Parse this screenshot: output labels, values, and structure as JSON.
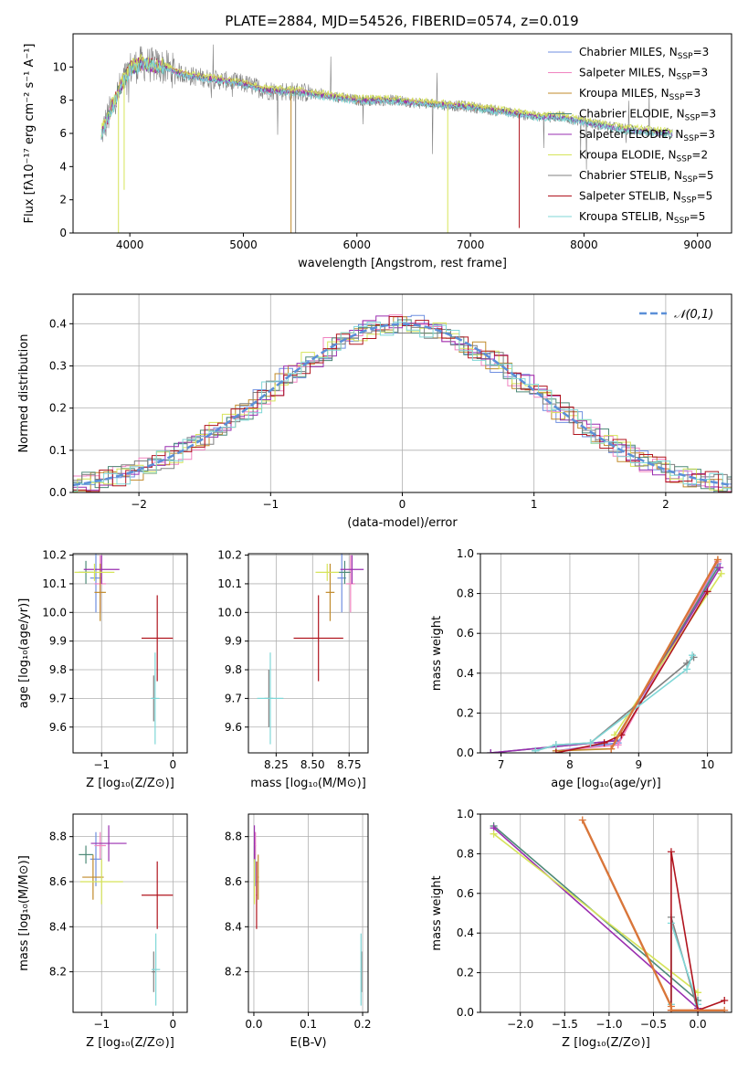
{
  "figure": {
    "title": "PLATE=2884, MJD=54526, FIBERID=0574, z=0.019"
  },
  "colors": {
    "Chabrier MILES": "#6f8fe0",
    "Salpeter MILES": "#f083c0",
    "Kroupa MILES": "#c08a2a",
    "Chabrier ELODIE": "#4e8a78",
    "Salpeter ELODIE": "#9a2fb0",
    "Kroupa ELODIE": "#d6e45a",
    "Chabrier STELIB": "#808080",
    "Salpeter STELIB": "#b0141e",
    "Kroupa STELIB": "#7fd7d7",
    "normal": "#5b8fd8",
    "orange_line": "#d9763a"
  },
  "chart_data": [
    {
      "id": "spectrum",
      "type": "line",
      "title": "PLATE=2884, MJD=54526, FIBERID=0574, z=0.019",
      "xlabel": "wavelength [Angstrom, rest frame]",
      "ylabel": "Flux [fλ10⁻¹⁷ erg cm⁻² s⁻¹ A⁻¹]",
      "xlim": [
        3500,
        9300
      ],
      "ylim": [
        0,
        12
      ],
      "xticks": [
        4000,
        5000,
        6000,
        7000,
        8000,
        9000
      ],
      "yticks": [
        0,
        2,
        4,
        6,
        8,
        10
      ],
      "grid": false,
      "legend_position": "top-right",
      "legend": [
        "Chabrier MILES, N_SSP=3",
        "Salpeter MILES, N_SSP=3",
        "Kroupa MILES, N_SSP=3",
        "Chabrier ELODIE, N_SSP=3",
        "Salpeter ELODIE, N_SSP=3",
        "Kroupa ELODIE, N_SSP=2",
        "Chabrier STELIB, N_SSP=5",
        "Salpeter STELIB, N_SSP=5",
        "Kroupa STELIB, N_SSP=5"
      ],
      "continuum": {
        "x": [
          3750,
          3900,
          4000,
          4100,
          4300,
          4500,
          4800,
          5000,
          5200,
          5500,
          5800,
          6000,
          6300,
          6600,
          7000,
          7300,
          7600,
          7800,
          8000,
          8300,
          8600,
          8800
        ],
        "y": [
          6.0,
          8.5,
          9.9,
          10.2,
          10.0,
          9.5,
          9.2,
          9.0,
          8.6,
          8.5,
          8.2,
          8.0,
          8.0,
          7.8,
          7.6,
          7.3,
          7.0,
          7.0,
          6.7,
          6.3,
          6.1,
          6.0
        ]
      },
      "dropouts": [
        {
          "x": 3900,
          "y": 0.0,
          "series": "Kroupa ELODIE"
        },
        {
          "x": 3950,
          "y": 2.6,
          "series": "Kroupa ELODIE"
        },
        {
          "x": 5420,
          "y": 0.0,
          "series": "Kroupa MILES"
        },
        {
          "x": 5460,
          "y": 0.0,
          "series": "Chabrier STELIB"
        },
        {
          "x": 6800,
          "y": 0.0,
          "series": "Kroupa ELODIE"
        },
        {
          "x": 7430,
          "y": 0.3,
          "series": "Salpeter STELIB"
        }
      ]
    },
    {
      "id": "residuals",
      "type": "histogram",
      "xlabel": "(data-model)/error",
      "ylabel": "Normed distribution",
      "xlim": [
        -2.5,
        2.5
      ],
      "ylim": [
        0,
        0.47
      ],
      "xticks": [
        -2,
        -1,
        0,
        1,
        2
      ],
      "yticks": [
        0.0,
        0.1,
        0.2,
        0.3,
        0.4
      ],
      "grid": true,
      "legend_position": "top-right",
      "legend": [
        "𝒩(0,1)"
      ],
      "normal": {
        "mean": 0,
        "sigma": 1
      }
    },
    {
      "id": "age_vs_Z",
      "type": "scatter",
      "xlabel": "Z [log₁₀(Z/Z⊙)]",
      "ylabel": "age  [log₁₀(age/yr)]",
      "xlim": [
        -1.4,
        0.2
      ],
      "ylim": [
        9.51,
        10.205
      ],
      "xticks": [
        -1,
        0
      ],
      "yticks": [
        9.6,
        9.7,
        9.8,
        9.9,
        10.0,
        10.1,
        10.2
      ],
      "grid": true,
      "points": [
        {
          "series": "Chabrier MILES",
          "x": -1.08,
          "y": 10.12,
          "xerr": 0.08,
          "yerr": 0.12
        },
        {
          "series": "Salpeter MILES",
          "x": -1.02,
          "y": 10.1,
          "xerr": 0.08,
          "yerr": 0.1
        },
        {
          "series": "Kroupa MILES",
          "x": -1.02,
          "y": 10.07,
          "xerr": 0.08,
          "yerr": 0.1
        },
        {
          "series": "Chabrier ELODIE",
          "x": -1.22,
          "y": 10.14,
          "xerr": 0.1,
          "yerr": 0.04
        },
        {
          "series": "Salpeter ELODIE",
          "x": -1.0,
          "y": 10.15,
          "xerr": 0.25,
          "yerr": 0.05
        },
        {
          "series": "Kroupa ELODIE",
          "x": -1.1,
          "y": 10.14,
          "xerr": 0.28,
          "yerr": 0.03
        },
        {
          "series": "Chabrier STELIB",
          "x": -0.27,
          "y": 9.7,
          "xerr": 0.03,
          "yerr": 0.08
        },
        {
          "series": "Salpeter STELIB",
          "x": -0.22,
          "y": 9.91,
          "xerr": 0.22,
          "yerr": 0.15
        },
        {
          "series": "Kroupa STELIB",
          "x": -0.25,
          "y": 9.7,
          "xerr": 0.06,
          "yerr": 0.16
        }
      ]
    },
    {
      "id": "age_vs_mass",
      "type": "scatter",
      "xlabel": "mass [log₁₀(M/M⊙)]",
      "ylabel": "",
      "xlim": [
        8.06,
        8.88
      ],
      "ylim": [
        9.51,
        10.205
      ],
      "xticks": [
        8.25,
        8.5,
        8.75
      ],
      "yticks": [
        9.6,
        9.7,
        9.8,
        9.9,
        10.0,
        10.1,
        10.2
      ],
      "grid": true,
      "points": [
        {
          "series": "Chabrier MILES",
          "x": 8.7,
          "y": 10.12,
          "xerr": 0.03,
          "yerr": 0.12
        },
        {
          "series": "Salpeter MILES",
          "x": 8.76,
          "y": 10.1,
          "xerr": 0.03,
          "yerr": 0.1
        },
        {
          "series": "Kroupa MILES",
          "x": 8.62,
          "y": 10.07,
          "xerr": 0.03,
          "yerr": 0.1
        },
        {
          "series": "Chabrier ELODIE",
          "x": 8.72,
          "y": 10.14,
          "xerr": 0.04,
          "yerr": 0.04
        },
        {
          "series": "Salpeter ELODIE",
          "x": 8.77,
          "y": 10.15,
          "xerr": 0.08,
          "yerr": 0.05
        },
        {
          "series": "Kroupa ELODIE",
          "x": 8.6,
          "y": 10.14,
          "xerr": 0.08,
          "yerr": 0.03
        },
        {
          "series": "Chabrier STELIB",
          "x": 8.2,
          "y": 9.7,
          "xerr": 0.03,
          "yerr": 0.1
        },
        {
          "series": "Salpeter STELIB",
          "x": 8.54,
          "y": 9.91,
          "xerr": 0.17,
          "yerr": 0.15
        },
        {
          "series": "Kroupa STELIB",
          "x": 8.21,
          "y": 9.7,
          "xerr": 0.09,
          "yerr": 0.16
        }
      ]
    },
    {
      "id": "massweight_vs_age",
      "type": "line",
      "xlabel": "age  [log₁₀(age/yr)]",
      "ylabel": "mass weight",
      "xlim": [
        6.7,
        10.35
      ],
      "ylim": [
        0,
        1
      ],
      "xticks": [
        7,
        8,
        9,
        10
      ],
      "yticks": [
        0.0,
        0.2,
        0.4,
        0.6,
        0.8,
        1.0
      ],
      "grid": true,
      "series": [
        {
          "series": "Chabrier MILES",
          "x": [
            7.8,
            8.7,
            10.15
          ],
          "y": [
            0.01,
            0.05,
            0.95
          ]
        },
        {
          "series": "Salpeter MILES",
          "x": [
            7.8,
            8.7,
            10.15
          ],
          "y": [
            0.01,
            0.04,
            0.96
          ]
        },
        {
          "series": "Kroupa MILES",
          "x": [
            7.8,
            8.6,
            10.15
          ],
          "y": [
            0.01,
            0.02,
            0.97
          ]
        },
        {
          "series": "Chabrier ELODIE",
          "x": [
            6.85,
            8.65,
            10.15
          ],
          "y": [
            0.0,
            0.06,
            0.93
          ]
        },
        {
          "series": "Salpeter ELODIE",
          "x": [
            6.85,
            8.65,
            10.18
          ],
          "y": [
            0.0,
            0.06,
            0.93
          ]
        },
        {
          "series": "Kroupa ELODIE",
          "x": [
            8.65,
            10.2
          ],
          "y": [
            0.09,
            0.9
          ]
        },
        {
          "series": "Chabrier STELIB",
          "x": [
            7.5,
            7.8,
            8.3,
            9.7,
            9.8
          ],
          "y": [
            0.01,
            0.04,
            0.05,
            0.45,
            0.48
          ]
        },
        {
          "series": "Salpeter STELIB",
          "x": [
            7.8,
            8.5,
            8.75,
            10.0
          ],
          "y": [
            0.0,
            0.05,
            0.09,
            0.81
          ]
        },
        {
          "series": "Kroupa STELIB",
          "x": [
            7.5,
            7.8,
            8.3,
            9.7,
            9.78
          ],
          "y": [
            0.01,
            0.04,
            0.05,
            0.42,
            0.49
          ]
        },
        {
          "series": "orange_line",
          "x": [
            8.6,
            10.15
          ],
          "y": [
            0.02,
            0.97
          ]
        }
      ]
    },
    {
      "id": "mass_vs_Z",
      "type": "scatter",
      "xlabel": "Z [log₁₀(Z/Z⊙)]",
      "ylabel": "mass [log₁₀(M/M⊙)]",
      "xlim": [
        -1.4,
        0.2
      ],
      "ylim": [
        8.02,
        8.9
      ],
      "xticks": [
        -1,
        0
      ],
      "yticks": [
        8.2,
        8.4,
        8.6,
        8.8
      ],
      "grid": true,
      "points": [
        {
          "series": "Chabrier MILES",
          "x": -1.08,
          "y": 8.7,
          "xerr": 0.08,
          "yerr": 0.12
        },
        {
          "series": "Salpeter MILES",
          "x": -1.02,
          "y": 8.76,
          "xerr": 0.08,
          "yerr": 0.06
        },
        {
          "series": "Kroupa MILES",
          "x": -1.12,
          "y": 8.62,
          "xerr": 0.15,
          "yerr": 0.1
        },
        {
          "series": "Chabrier ELODIE",
          "x": -1.22,
          "y": 8.72,
          "xerr": 0.1,
          "yerr": 0.04
        },
        {
          "series": "Salpeter ELODIE",
          "x": -0.9,
          "y": 8.77,
          "xerr": 0.25,
          "yerr": 0.08
        },
        {
          "series": "Kroupa ELODIE",
          "x": -1.0,
          "y": 8.6,
          "xerr": 0.3,
          "yerr": 0.1
        },
        {
          "series": "Chabrier STELIB",
          "x": -0.27,
          "y": 8.2,
          "xerr": 0.03,
          "yerr": 0.09
        },
        {
          "series": "Salpeter STELIB",
          "x": -0.22,
          "y": 8.54,
          "xerr": 0.22,
          "yerr": 0.15
        },
        {
          "series": "Kroupa STELIB",
          "x": -0.24,
          "y": 8.21,
          "xerr": 0.06,
          "yerr": 0.16
        }
      ]
    },
    {
      "id": "mass_vs_EBV",
      "type": "scatter",
      "xlabel": "E(B-V)",
      "ylabel": "",
      "xlim": [
        -0.01,
        0.21
      ],
      "ylim": [
        8.02,
        8.9
      ],
      "xticks": [
        0.0,
        0.1,
        0.2
      ],
      "yticks": [
        8.2,
        8.4,
        8.6,
        8.8
      ],
      "grid": true,
      "points": [
        {
          "series": "Chabrier MILES",
          "x": 0.002,
          "y": 8.7,
          "xerr": 0.001,
          "yerr": 0.12
        },
        {
          "series": "Salpeter MILES",
          "x": 0.003,
          "y": 8.76,
          "xerr": 0.001,
          "yerr": 0.06
        },
        {
          "series": "Kroupa MILES",
          "x": 0.008,
          "y": 8.62,
          "xerr": 0.001,
          "yerr": 0.1
        },
        {
          "series": "Chabrier ELODIE",
          "x": 0.001,
          "y": 8.72,
          "xerr": 0.001,
          "yerr": 0.04
        },
        {
          "series": "Salpeter ELODIE",
          "x": 0.001,
          "y": 8.77,
          "xerr": 0.001,
          "yerr": 0.08
        },
        {
          "series": "Kroupa ELODIE",
          "x": 0.001,
          "y": 8.6,
          "xerr": 0.001,
          "yerr": 0.1
        },
        {
          "series": "Chabrier STELIB",
          "x": 0.198,
          "y": 8.2,
          "xerr": 0.001,
          "yerr": 0.09
        },
        {
          "series": "Salpeter STELIB",
          "x": 0.005,
          "y": 8.54,
          "xerr": 0.001,
          "yerr": 0.15
        },
        {
          "series": "Kroupa STELIB",
          "x": 0.197,
          "y": 8.21,
          "xerr": 0.001,
          "yerr": 0.16
        }
      ]
    },
    {
      "id": "massweight_vs_Z",
      "type": "line",
      "xlabel": "Z [log₁₀(Z/Z⊙)]",
      "ylabel": "mass weight",
      "xlim": [
        -2.45,
        0.38
      ],
      "ylim": [
        0,
        1
      ],
      "xticks": [
        -2.0,
        -1.5,
        -1.0,
        -0.5,
        0.0
      ],
      "yticks": [
        0.0,
        0.2,
        0.4,
        0.6,
        0.8,
        1.0
      ],
      "grid": true,
      "series": [
        {
          "series": "Chabrier ELODIE",
          "x": [
            -2.3,
            0.0
          ],
          "y": [
            0.94,
            0.06
          ]
        },
        {
          "series": "Salpeter ELODIE",
          "x": [
            -2.3,
            0.0
          ],
          "y": [
            0.93,
            0.02
          ]
        },
        {
          "series": "Kroupa ELODIE",
          "x": [
            -2.3,
            0.0
          ],
          "y": [
            0.9,
            0.1
          ]
        },
        {
          "series": "Chabrier STELIB",
          "x": [
            -0.3,
            -0.3,
            0.0
          ],
          "y": [
            0.01,
            0.48,
            0.01
          ]
        },
        {
          "series": "Kroupa STELIB",
          "x": [
            -0.3,
            -0.3,
            0.0
          ],
          "y": [
            0.04,
            0.45,
            0.04
          ]
        },
        {
          "series": "Salpeter STELIB",
          "x": [
            -0.3,
            -0.3,
            0.0,
            0.3
          ],
          "y": [
            0.01,
            0.81,
            0.01,
            0.06
          ]
        },
        {
          "series": "orange_line",
          "x": [
            -1.3,
            -0.3,
            -0.3,
            0.3
          ],
          "y": [
            0.97,
            0.03,
            0.01,
            0.01
          ]
        }
      ]
    }
  ]
}
